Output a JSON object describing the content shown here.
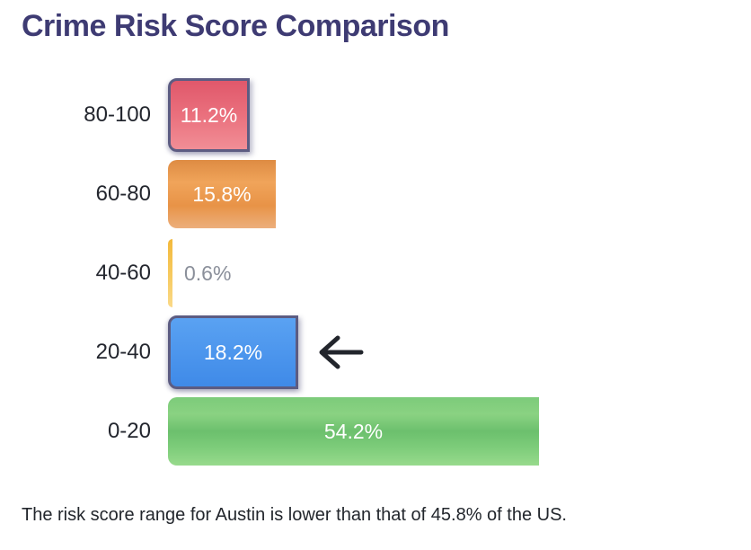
{
  "title": "Crime Risk Score Comparison",
  "footer": "The risk score range for Austin is lower than that of 45.8% of the US.",
  "accent_colors": {
    "title": "#3E3B73",
    "category_label_text": "#23262E",
    "muted_value_text": "#8A8F9A",
    "arrow": "#22252C",
    "highlight_border": "#5C5C82"
  },
  "chart_data": {
    "type": "bar",
    "orientation": "horizontal",
    "title": "Crime Risk Score Comparison",
    "xlabel": "",
    "ylabel": "",
    "categories": [
      "80-100",
      "60-80",
      "40-60",
      "20-40",
      "0-20"
    ],
    "values": [
      11.2,
      15.8,
      0.6,
      18.2,
      54.2
    ],
    "xlim": [
      0,
      54.2
    ],
    "grid": false,
    "legend": false,
    "annotation": {
      "type": "left-arrow",
      "category": "20-40"
    },
    "bars": [
      {
        "category": "80-100",
        "value": 11.2,
        "display": "11.2%",
        "gradient": [
          "#E0586B",
          "#EA707D",
          "#F18E96"
        ],
        "border": "#5C5C82",
        "label_placement": "inside",
        "label_color": "#FFFFFF",
        "arrow": false
      },
      {
        "category": "60-80",
        "value": 15.8,
        "display": "15.8%",
        "gradient": [
          "#DE8B43",
          "#F0A45A",
          "#E89347",
          "#ECAF7C"
        ],
        "border": null,
        "label_placement": "inside",
        "label_color": "#FFFFFF",
        "arrow": false
      },
      {
        "category": "40-60",
        "value": 0.6,
        "display": "0.6%",
        "gradient": [
          "#F3B93C",
          "#F6C95D",
          "#FAD988"
        ],
        "border": null,
        "label_placement": "outside",
        "label_color": "#8A8F9A",
        "arrow": false
      },
      {
        "category": "20-40",
        "value": 18.2,
        "display": "18.2%",
        "gradient": [
          "#5AA2F2",
          "#3F8AE8"
        ],
        "border": "#5C5C82",
        "label_placement": "inside",
        "label_color": "#FFFFFF",
        "arrow": true
      },
      {
        "category": "0-20",
        "value": 54.2,
        "display": "54.2%",
        "gradient": [
          "#7CCB7A",
          "#8AD282",
          "#6CC06D",
          "#7ECD7B",
          "#98DA8C"
        ],
        "border": null,
        "label_placement": "inside",
        "label_color": "#FFFFFF",
        "arrow": false
      }
    ]
  }
}
